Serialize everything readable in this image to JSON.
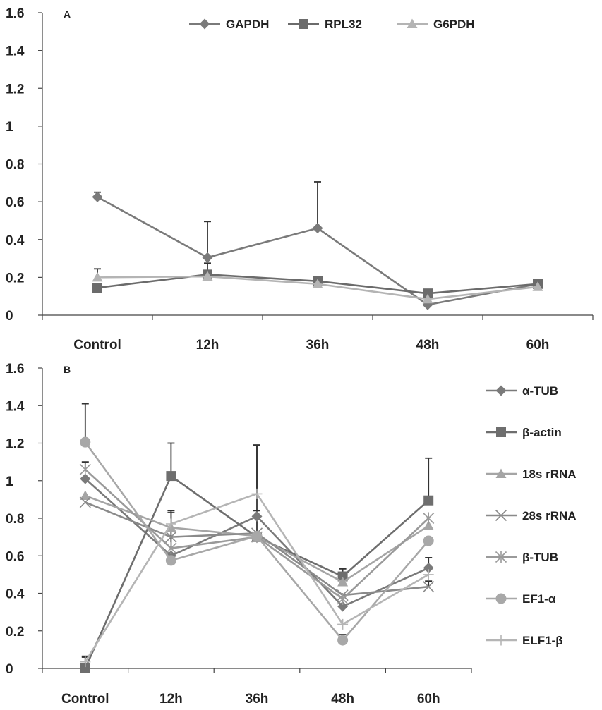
{
  "chart_data": [
    {
      "panel_label": "A",
      "type": "line",
      "categories": [
        "Control",
        "12h",
        "36h",
        "48h",
        "60h"
      ],
      "ylim": [
        0,
        1.6
      ],
      "yticks": [
        "0",
        "0.2",
        "0.4",
        "0.6",
        "0.8",
        "1",
        "1.2",
        "1.4",
        "1.6"
      ],
      "grid": false,
      "legend_position": "top",
      "series": [
        {
          "name": "GAPDH",
          "marker": "diamond",
          "color": "#7a7a7a",
          "values": [
            0.625,
            0.305,
            0.46,
            0.055,
            0.165
          ],
          "error": [
            0.025,
            0.19,
            0.245,
            0.0,
            0.0
          ]
        },
        {
          "name": "RPL32",
          "marker": "square",
          "color": "#6b6b6b",
          "values": [
            0.145,
            0.215,
            0.18,
            0.115,
            0.165
          ],
          "error": [
            0.0,
            0.06,
            0.0,
            0.0,
            0.0
          ]
        },
        {
          "name": "G6PDH",
          "marker": "triangle",
          "color": "#b4b4b4",
          "values": [
            0.2,
            0.205,
            0.165,
            0.085,
            0.15
          ],
          "error": [
            0.045,
            0.0,
            0.0,
            0.0,
            0.0
          ]
        }
      ]
    },
    {
      "panel_label": "B",
      "type": "line",
      "categories": [
        "Control",
        "12h",
        "36h",
        "48h",
        "60h"
      ],
      "ylim": [
        0,
        1.6
      ],
      "yticks": [
        "0",
        "0.2",
        "0.4",
        "0.6",
        "0.8",
        "1",
        "1.2",
        "1.4",
        "1.6"
      ],
      "grid": false,
      "legend_position": "right",
      "series": [
        {
          "name": "α-TUB",
          "marker": "diamond",
          "color": "#7a7a7a",
          "values": [
            1.01,
            0.6,
            0.81,
            0.33,
            0.535
          ],
          "error": [
            0.0,
            0.0,
            0.03,
            0.0,
            0.055
          ]
        },
        {
          "name": "β-actin",
          "marker": "square",
          "color": "#6e6e6e",
          "values": [
            0.0,
            1.025,
            0.7,
            0.49,
            0.895
          ],
          "error": [
            0.06,
            0.175,
            0.49,
            0.04,
            0.225
          ]
        },
        {
          "name": "18s rRNA",
          "marker": "triangle",
          "color": "#a5a5a5",
          "values": [
            0.92,
            0.75,
            0.705,
            0.46,
            0.76
          ],
          "error": [
            0.0,
            0.0,
            0.0,
            0.0,
            0.0
          ]
        },
        {
          "name": "28s rRNA",
          "marker": "x",
          "color": "#8a8a8a",
          "values": [
            0.885,
            0.7,
            0.72,
            0.39,
            0.435
          ],
          "error": [
            0.0,
            0.0,
            0.0,
            0.0,
            0.03
          ]
        },
        {
          "name": "β-TUB",
          "marker": "star",
          "color": "#9a9a9a",
          "values": [
            1.06,
            0.64,
            0.7,
            0.37,
            0.8
          ],
          "error": [
            0.04,
            0.2,
            0.0,
            0.0,
            0.0
          ]
        },
        {
          "name": "EF1-α",
          "marker": "circle",
          "color": "#a8a8a8",
          "values": [
            1.205,
            0.575,
            0.705,
            0.15,
            0.68
          ],
          "error": [
            0.205,
            0.0,
            0.0,
            0.03,
            0.0
          ]
        },
        {
          "name": "ELF1-β",
          "marker": "plus",
          "color": "#b5b5b5",
          "values": [
            0.035,
            0.77,
            0.93,
            0.235,
            0.5
          ],
          "error": [
            0.03,
            0.06,
            0.26,
            0.0,
            0.0
          ]
        }
      ]
    }
  ]
}
